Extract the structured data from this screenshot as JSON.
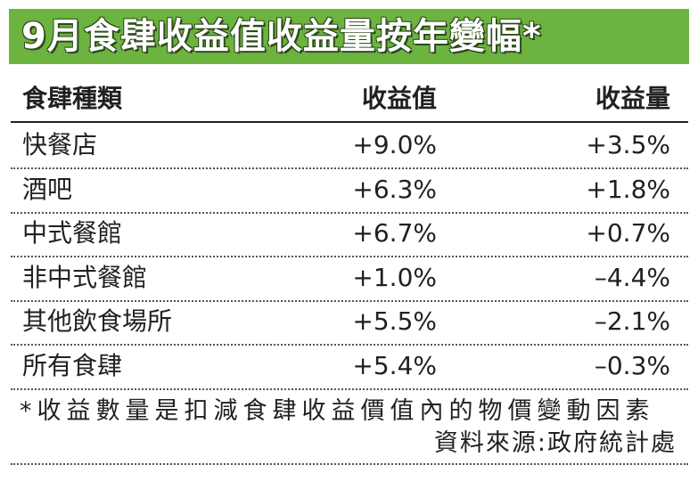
{
  "title": "9月食肆收益值收益量按年變幅*",
  "table": {
    "header": [
      "食肆種類",
      "收益值",
      "收益量"
    ],
    "rows": [
      [
        "快餐店",
        "+9.0%",
        "+3.5%"
      ],
      [
        "酒吧",
        "+6.3%",
        "+1.8%"
      ],
      [
        "中式餐館",
        "+6.7%",
        "+0.7%"
      ],
      [
        "非中式餐館",
        "+1.0%",
        "–4.4%"
      ],
      [
        "其他飲食場所",
        "+5.5%",
        "–2.1%"
      ],
      [
        "所有食肆",
        "+5.4%",
        "–0.3%"
      ]
    ]
  },
  "footnote": "*收益數量是扣減食肆收益價值內的物價變動因素",
  "source": "資料來源:政府統計處"
}
